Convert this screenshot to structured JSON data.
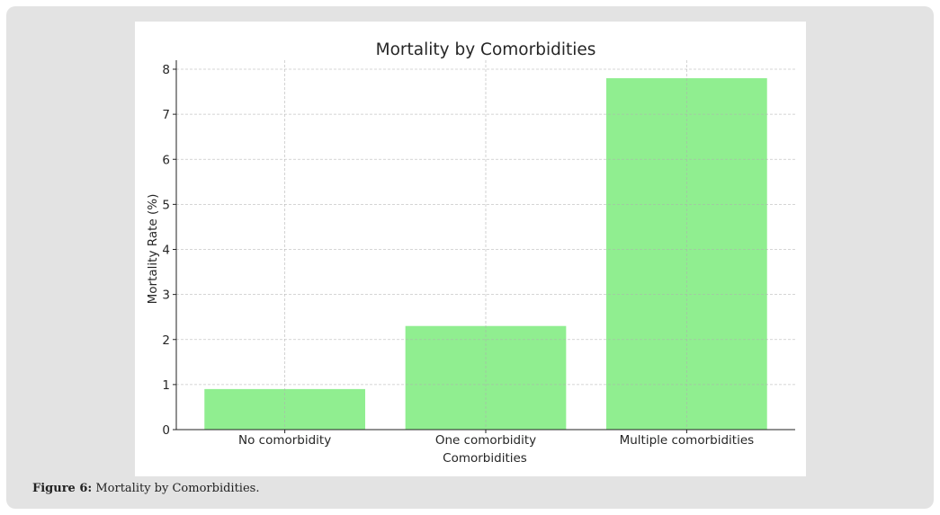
{
  "chart_data": {
    "type": "bar",
    "title": "Mortality by Comorbidities",
    "xlabel": "Comorbidities",
    "ylabel": "Mortality Rate (%)",
    "categories": [
      "No comorbidity",
      "One comorbidity",
      "Multiple comorbidities"
    ],
    "values": [
      0.9,
      2.3,
      7.8
    ],
    "ylim": [
      0,
      8.2
    ],
    "yticks": [
      "0",
      "1",
      "2",
      "3",
      "4",
      "5",
      "6",
      "7",
      "8"
    ],
    "grid": true,
    "bar_color": "#90ee90"
  },
  "caption": {
    "label": "Figure 6:",
    "text": " Mortality by Comorbidities."
  }
}
